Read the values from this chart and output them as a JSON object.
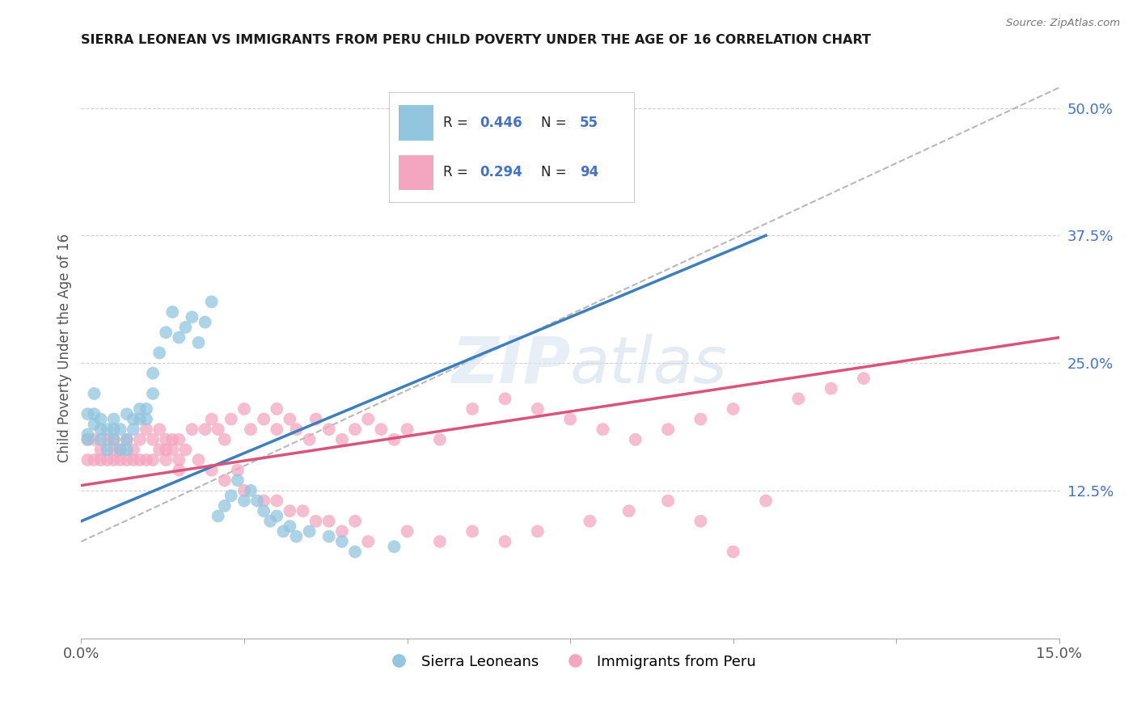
{
  "title": "SIERRA LEONEAN VS IMMIGRANTS FROM PERU CHILD POVERTY UNDER THE AGE OF 16 CORRELATION CHART",
  "source": "Source: ZipAtlas.com",
  "ylabel": "Child Poverty Under the Age of 16",
  "xlim": [
    0.0,
    0.15
  ],
  "ylim": [
    -0.02,
    0.55
  ],
  "blue_R": 0.446,
  "blue_N": 55,
  "pink_R": 0.294,
  "pink_N": 94,
  "blue_color": "#92c5de",
  "pink_color": "#f4a6c0",
  "blue_line_color": "#3d7ebf",
  "pink_line_color": "#d9547a",
  "dashed_line_color": "#b8b8b8",
  "legend_blue_label": "Sierra Leoneans",
  "legend_pink_label": "Immigrants from Peru",
  "blue_line": [
    0.0,
    0.105,
    0.095,
    0.375
  ],
  "pink_line": [
    0.0,
    0.15,
    0.13,
    0.275
  ],
  "dashed_line": [
    0.0,
    0.15,
    0.075,
    0.52
  ],
  "blue_x": [
    0.001,
    0.001,
    0.001,
    0.002,
    0.002,
    0.002,
    0.003,
    0.003,
    0.003,
    0.004,
    0.004,
    0.005,
    0.005,
    0.005,
    0.006,
    0.006,
    0.007,
    0.007,
    0.007,
    0.008,
    0.008,
    0.009,
    0.009,
    0.01,
    0.01,
    0.011,
    0.011,
    0.012,
    0.013,
    0.014,
    0.015,
    0.016,
    0.017,
    0.018,
    0.019,
    0.02,
    0.021,
    0.022,
    0.023,
    0.024,
    0.025,
    0.026,
    0.027,
    0.028,
    0.029,
    0.03,
    0.031,
    0.032,
    0.033,
    0.035,
    0.038,
    0.04,
    0.042,
    0.048,
    0.058
  ],
  "blue_y": [
    0.2,
    0.18,
    0.175,
    0.19,
    0.2,
    0.22,
    0.195,
    0.175,
    0.185,
    0.185,
    0.165,
    0.185,
    0.175,
    0.195,
    0.185,
    0.165,
    0.175,
    0.165,
    0.2,
    0.195,
    0.185,
    0.195,
    0.205,
    0.195,
    0.205,
    0.22,
    0.24,
    0.26,
    0.28,
    0.3,
    0.275,
    0.285,
    0.295,
    0.27,
    0.29,
    0.31,
    0.1,
    0.11,
    0.12,
    0.135,
    0.115,
    0.125,
    0.115,
    0.105,
    0.095,
    0.1,
    0.085,
    0.09,
    0.08,
    0.085,
    0.08,
    0.075,
    0.065,
    0.07,
    0.46
  ],
  "pink_x": [
    0.001,
    0.001,
    0.002,
    0.002,
    0.003,
    0.003,
    0.004,
    0.004,
    0.005,
    0.005,
    0.005,
    0.006,
    0.006,
    0.007,
    0.007,
    0.008,
    0.008,
    0.009,
    0.009,
    0.01,
    0.01,
    0.011,
    0.011,
    0.012,
    0.012,
    0.013,
    0.013,
    0.014,
    0.015,
    0.015,
    0.016,
    0.017,
    0.018,
    0.019,
    0.02,
    0.021,
    0.022,
    0.023,
    0.025,
    0.026,
    0.028,
    0.03,
    0.03,
    0.032,
    0.033,
    0.035,
    0.036,
    0.038,
    0.04,
    0.042,
    0.044,
    0.046,
    0.048,
    0.05,
    0.055,
    0.06,
    0.065,
    0.07,
    0.075,
    0.08,
    0.085,
    0.09,
    0.095,
    0.1,
    0.11,
    0.115,
    0.12,
    0.013,
    0.014,
    0.015,
    0.02,
    0.022,
    0.024,
    0.025,
    0.028,
    0.03,
    0.032,
    0.034,
    0.036,
    0.038,
    0.04,
    0.042,
    0.044,
    0.05,
    0.055,
    0.06,
    0.065,
    0.07,
    0.078,
    0.084,
    0.09,
    0.095,
    0.1,
    0.105
  ],
  "pink_y": [
    0.155,
    0.175,
    0.155,
    0.175,
    0.155,
    0.165,
    0.155,
    0.175,
    0.155,
    0.165,
    0.175,
    0.155,
    0.165,
    0.155,
    0.175,
    0.155,
    0.165,
    0.155,
    0.175,
    0.155,
    0.185,
    0.155,
    0.175,
    0.165,
    0.185,
    0.175,
    0.165,
    0.175,
    0.155,
    0.175,
    0.165,
    0.185,
    0.155,
    0.185,
    0.195,
    0.185,
    0.175,
    0.195,
    0.205,
    0.185,
    0.195,
    0.205,
    0.185,
    0.195,
    0.185,
    0.175,
    0.195,
    0.185,
    0.175,
    0.185,
    0.195,
    0.185,
    0.175,
    0.185,
    0.175,
    0.205,
    0.215,
    0.205,
    0.195,
    0.185,
    0.175,
    0.185,
    0.195,
    0.205,
    0.215,
    0.225,
    0.235,
    0.155,
    0.165,
    0.145,
    0.145,
    0.135,
    0.145,
    0.125,
    0.115,
    0.115,
    0.105,
    0.105,
    0.095,
    0.095,
    0.085,
    0.095,
    0.075,
    0.085,
    0.075,
    0.085,
    0.075,
    0.085,
    0.095,
    0.105,
    0.115,
    0.095,
    0.065,
    0.115
  ]
}
